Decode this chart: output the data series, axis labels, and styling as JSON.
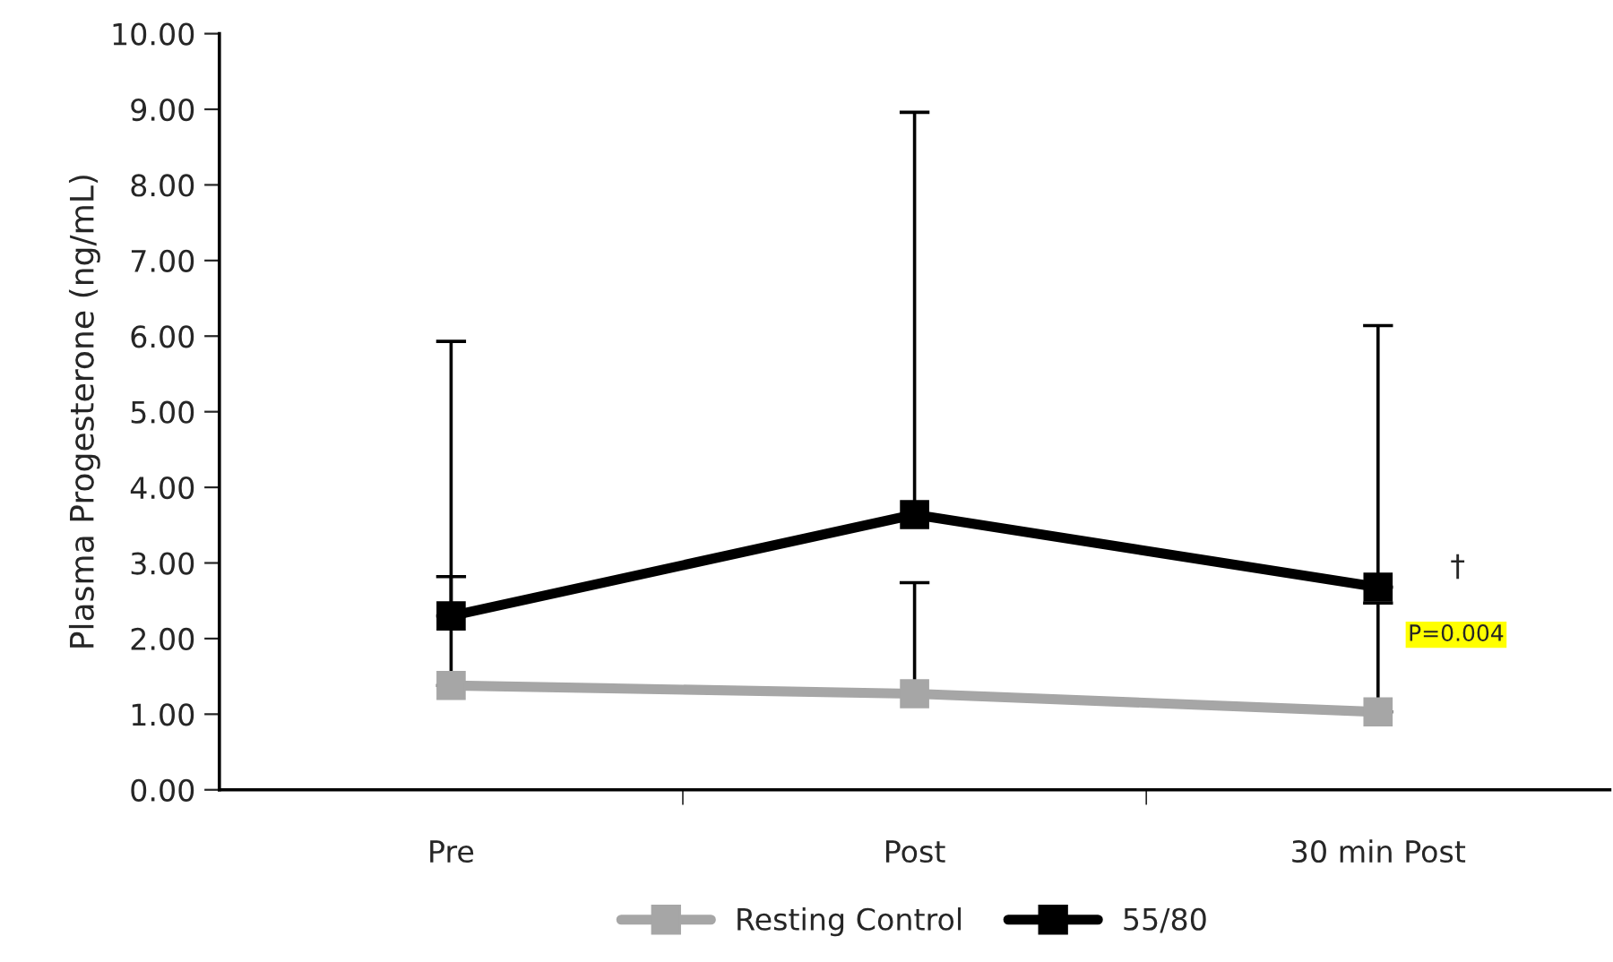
{
  "chart_data": {
    "type": "line",
    "ylabel": "Plasma Progesterone (ng/mL)",
    "categories": [
      "Pre",
      "Post",
      "30 min Post"
    ],
    "series": [
      {
        "name": "Resting Control",
        "color": "#a6a6a6",
        "values": [
          1.38,
          1.27,
          1.03
        ],
        "errors": [
          [
            1.38,
            2.82
          ],
          [
            1.27,
            2.74
          ],
          [
            1.03,
            2.47
          ]
        ]
      },
      {
        "name": "55/80",
        "color": "#000000",
        "values": [
          2.3,
          3.64,
          2.68
        ],
        "errors": [
          [
            2.3,
            5.93
          ],
          [
            3.64,
            8.96
          ],
          [
            2.68,
            6.14
          ]
        ]
      }
    ],
    "ylim": [
      0,
      10
    ],
    "yticks": [
      {
        "value": 0,
        "label": "0.00"
      },
      {
        "value": 1,
        "label": "1.00"
      },
      {
        "value": 2,
        "label": "2.00"
      },
      {
        "value": 3,
        "label": "3.00"
      },
      {
        "value": 4,
        "label": "4.00"
      },
      {
        "value": 5,
        "label": "5.00"
      },
      {
        "value": 6,
        "label": "6.00"
      },
      {
        "value": 7,
        "label": "7.00"
      },
      {
        "value": 8,
        "label": "8.00"
      },
      {
        "value": 9,
        "label": "9.00"
      },
      {
        "value": 10,
        "label": "10.00"
      }
    ],
    "annotations": [
      {
        "text": "†",
        "x": "30 min Post",
        "y": 2.68
      },
      {
        "text": "P=0.004",
        "x": "30 min Post",
        "y": 2.05
      }
    ],
    "marker": "square",
    "line_style": "solid",
    "grid": false,
    "legend": "bottom"
  }
}
